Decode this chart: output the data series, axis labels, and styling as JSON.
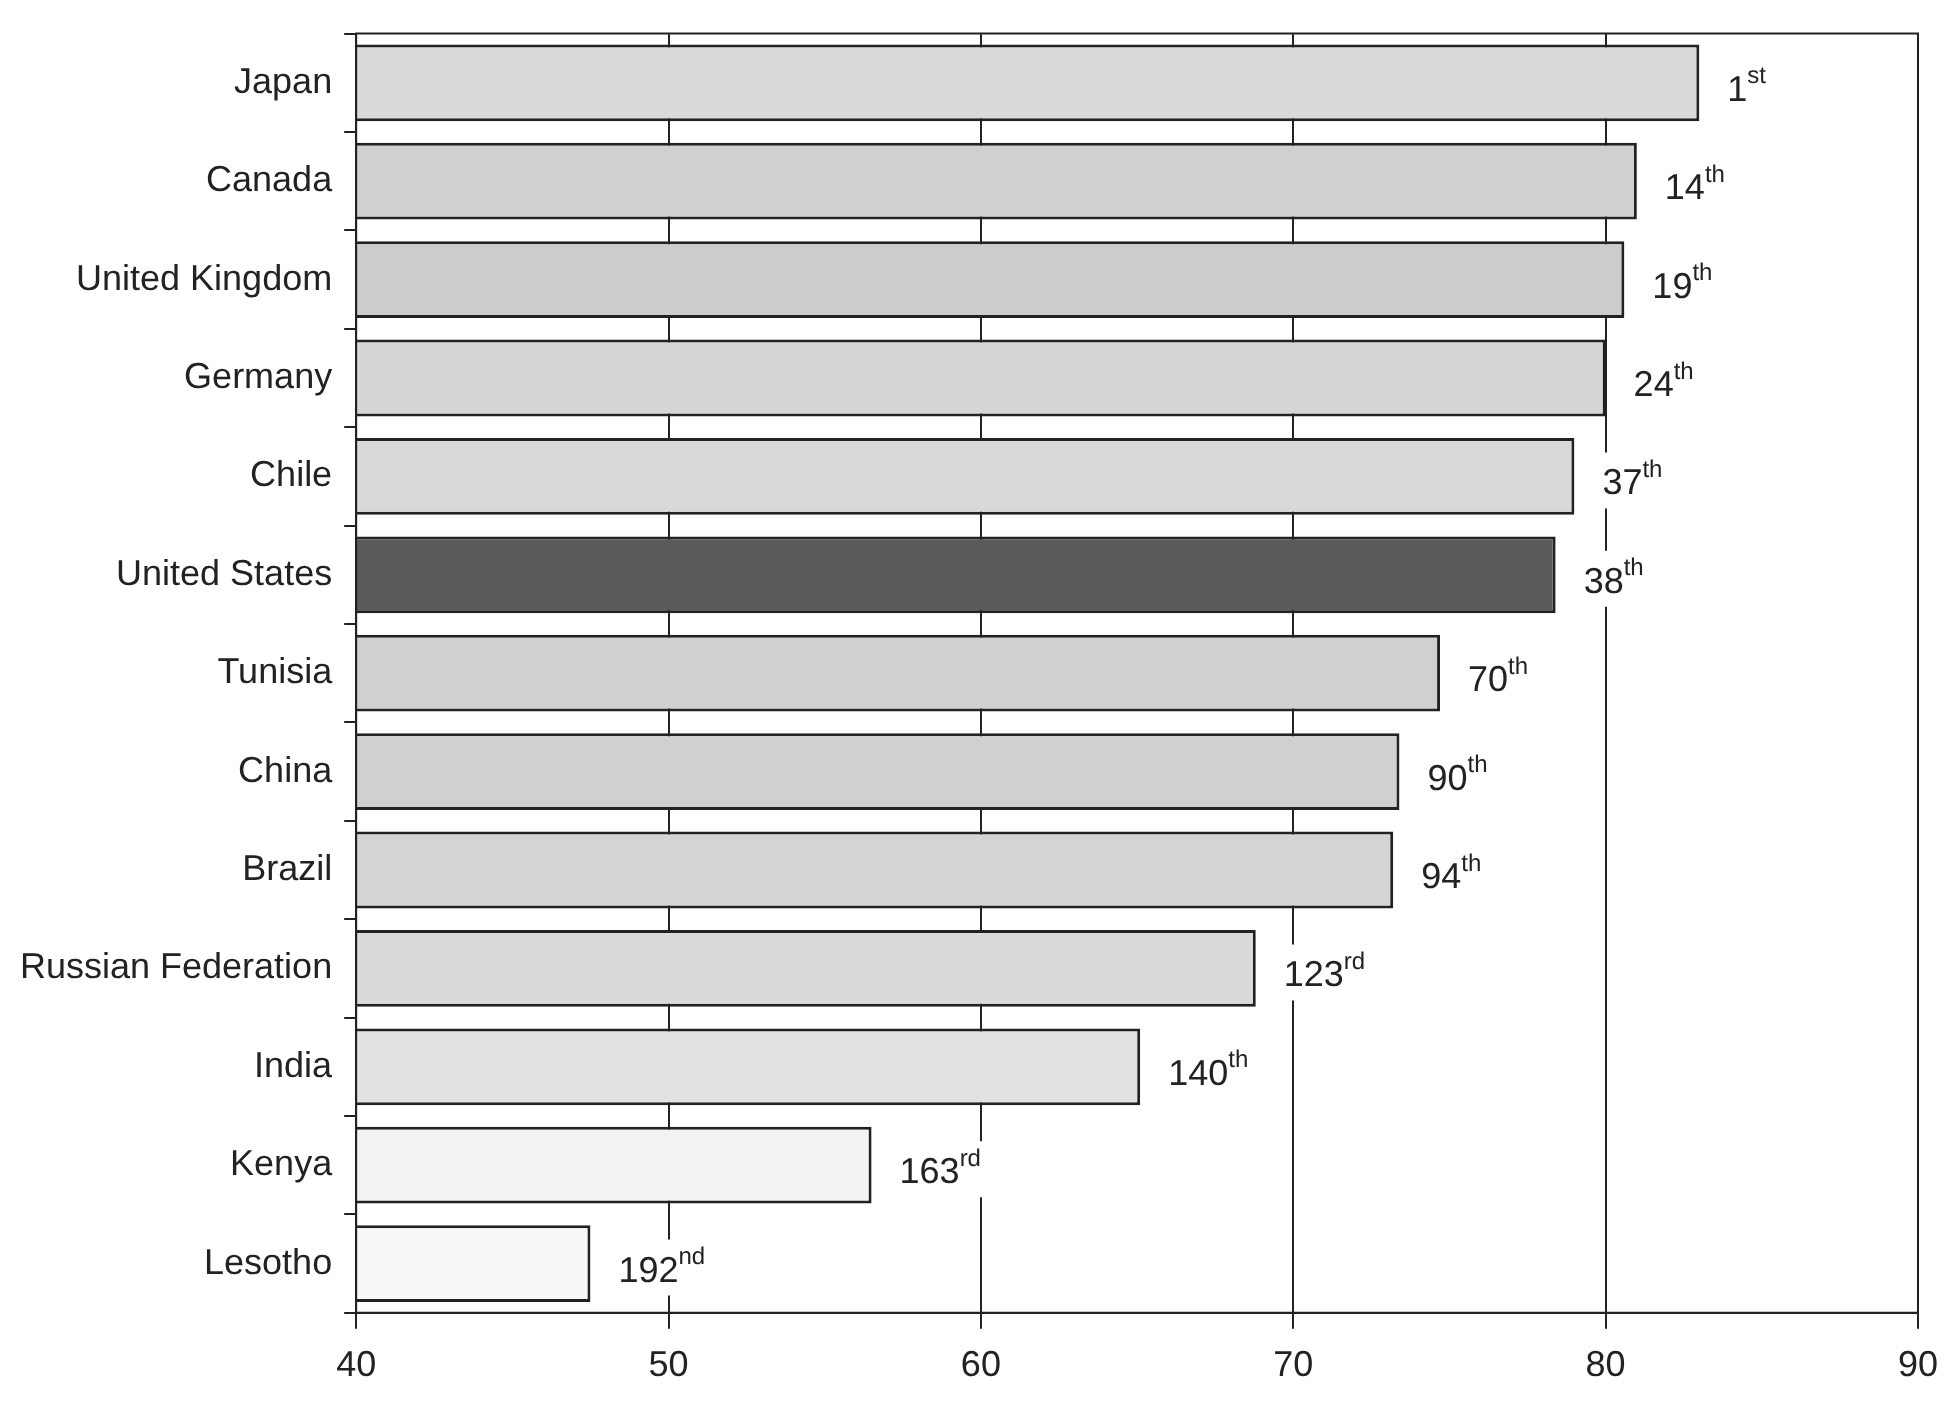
{
  "chart_data": {
    "type": "bar",
    "orientation": "horizontal",
    "categories": [
      "Japan",
      "Canada",
      "United Kingdom",
      "Germany",
      "Chile",
      "United States",
      "Tunisia",
      "China",
      "Brazil",
      "Russian Federation",
      "India",
      "Kenya",
      "Lesotho"
    ],
    "values": [
      83.0,
      81.0,
      80.6,
      80.0,
      79.0,
      78.4,
      74.7,
      73.4,
      73.2,
      68.8,
      65.1,
      56.5,
      47.5
    ],
    "colors": [
      "#d9d9d9",
      "#d0d0d0",
      "#cccccc",
      "#d6d6d6",
      "#d9d9d9",
      "#5a5a5a",
      "#d0d0d0",
      "#d0d0d0",
      "#d4d4d4",
      "#dadada",
      "#e2e2e2",
      "#f2f2f2",
      "#f8f8f8"
    ],
    "annotations": [
      {
        "text": "1$^{st}$",
        "x": 83.0,
        "y": "Japan"
      },
      {
        "text": "14$^{th}$",
        "x": 81.0,
        "y": "Canada"
      },
      {
        "text": "19$^{th}$",
        "x": 80.6,
        "y": "United Kingdom"
      },
      {
        "text": "24$^{th}$",
        "x": 80.0,
        "y": "Germany"
      },
      {
        "text": "37$^{th}$",
        "x": 79.0,
        "y": "Chile"
      },
      {
        "text": "38$^{th}$",
        "x": 78.4,
        "y": "United States"
      },
      {
        "text": "70$^{th}$",
        "x": 74.7,
        "y": "Tunisia"
      },
      {
        "text": "90$^{th}$",
        "x": 73.4,
        "y": "China"
      },
      {
        "text": "94$^{th}$",
        "x": 73.2,
        "y": "Brazil"
      },
      {
        "text": "123$^{rd}$",
        "x": 68.8,
        "y": "Russian Federation"
      },
      {
        "text": "140$^{th}$",
        "x": 65.1,
        "y": "India"
      },
      {
        "text": "163$^{rd}$",
        "x": 56.5,
        "y": "Kenya"
      },
      {
        "text": "192$^{nd}$",
        "x": 47.5,
        "y": "Lesotho"
      }
    ],
    "xlim": [
      40,
      90
    ],
    "xticks": [
      40,
      50,
      60,
      70,
      80,
      90
    ],
    "grid": "x"
  }
}
